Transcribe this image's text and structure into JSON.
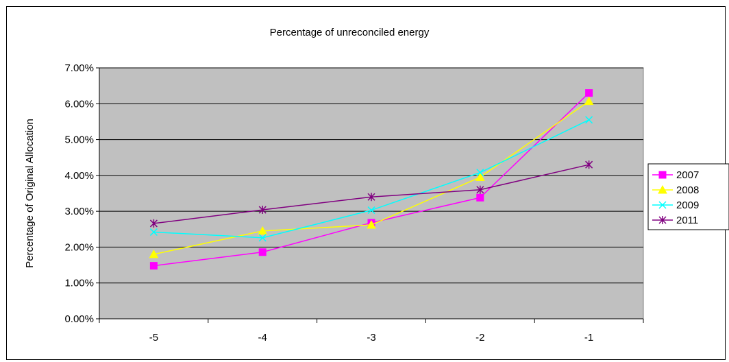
{
  "chart_data": {
    "type": "line",
    "title": "Percentage of unreconciled energy",
    "xlabel": "",
    "ylabel": "Percentage of Original Allocation",
    "categories": [
      "-5",
      "-4",
      "-3",
      "-2",
      "-1"
    ],
    "ylim": [
      0,
      0.07
    ],
    "yticks": [
      0,
      0.01,
      0.02,
      0.03,
      0.04,
      0.05,
      0.06,
      0.07
    ],
    "ytick_labels": [
      "0.00%",
      "1.00%",
      "2.00%",
      "3.00%",
      "4.00%",
      "5.00%",
      "6.00%",
      "7.00%"
    ],
    "grid": true,
    "plot_background": "#c0c0c0",
    "legend_position": "right",
    "series": [
      {
        "name": "2007",
        "color": "#ff00ff",
        "marker": "square",
        "values": [
          0.0148,
          0.0186,
          0.0268,
          0.0338,
          0.063
        ]
      },
      {
        "name": "2008",
        "color": "#ffff00",
        "marker": "triangle",
        "values": [
          0.018,
          0.0245,
          0.0262,
          0.0395,
          0.0607
        ]
      },
      {
        "name": "2009",
        "color": "#00ffff",
        "marker": "x",
        "values": [
          0.0242,
          0.0226,
          0.0303,
          0.0408,
          0.0555
        ]
      },
      {
        "name": "2011",
        "color": "#800080",
        "marker": "star",
        "values": [
          0.0266,
          0.0304,
          0.034,
          0.036,
          0.043
        ]
      }
    ]
  }
}
